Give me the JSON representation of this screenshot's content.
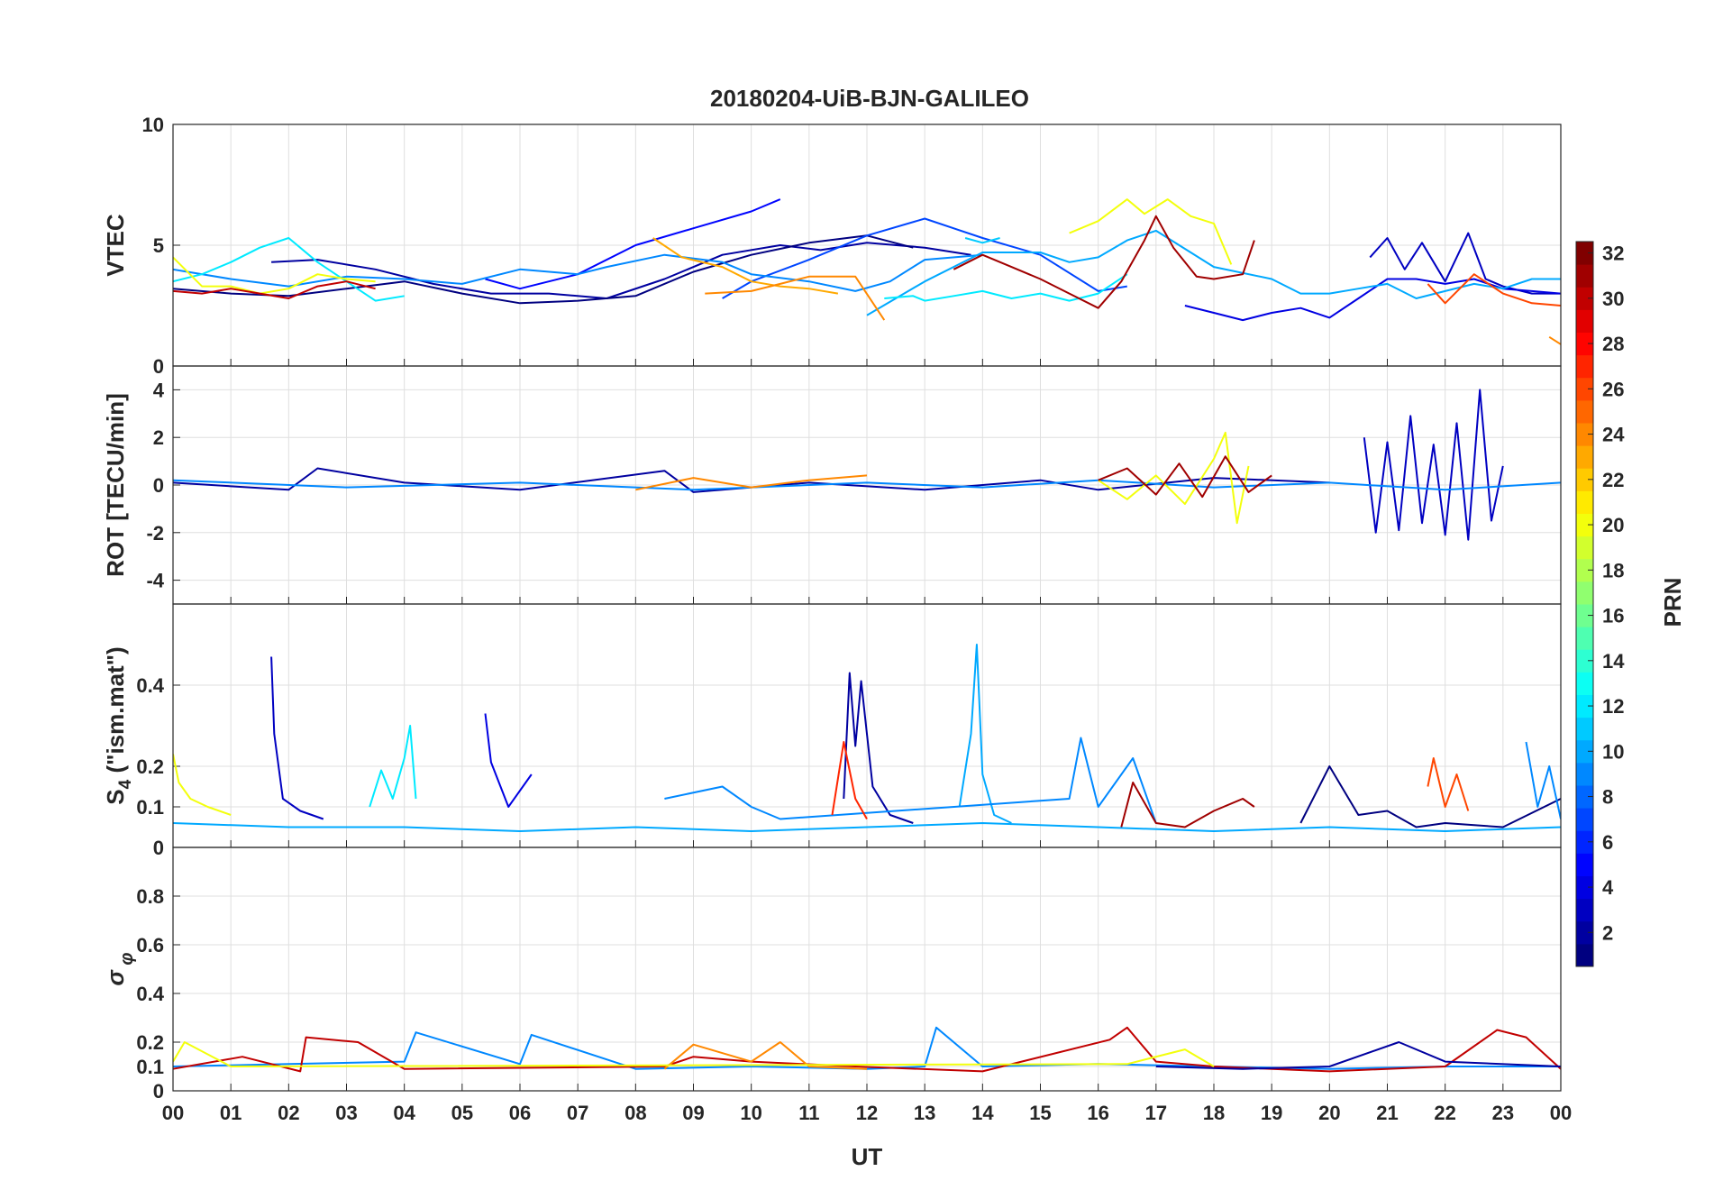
{
  "figure": {
    "title": "20180204-UiB-BJN-GALILEO",
    "xlabel": "UT",
    "x_tick_labels": [
      "00",
      "01",
      "02",
      "03",
      "04",
      "05",
      "06",
      "07",
      "08",
      "09",
      "10",
      "11",
      "12",
      "13",
      "14",
      "15",
      "16",
      "17",
      "18",
      "19",
      "20",
      "21",
      "22",
      "23",
      "00"
    ]
  },
  "colorbar": {
    "label": "PRN",
    "range": [
      1,
      32
    ],
    "tick_labels": [
      "2",
      "4",
      "6",
      "8",
      "10",
      "12",
      "14",
      "16",
      "18",
      "20",
      "22",
      "24",
      "26",
      "28",
      "30",
      "32"
    ],
    "colormap": "jet"
  },
  "chart_data": [
    {
      "type": "line",
      "panel": "vtec",
      "ylabel": "VTEC",
      "xlim": [
        0,
        24
      ],
      "ylim": [
        0,
        10
      ],
      "y_tick_labels": [
        "0",
        "5",
        "10"
      ],
      "series": [
        {
          "prn": 2,
          "x": [
            1.7,
            2.5,
            3.5,
            4.5,
            5.5,
            6.5,
            7.5,
            8.5,
            9.5,
            10.5,
            11.2,
            12,
            13,
            13.8
          ],
          "y": [
            4.3,
            4.4,
            4.0,
            3.4,
            3.0,
            3.0,
            2.8,
            3.6,
            4.6,
            5.0,
            4.8,
            5.1,
            4.9,
            4.6
          ]
        },
        {
          "prn": 1,
          "x": [
            0,
            1,
            2,
            3,
            4,
            5,
            6,
            7,
            8,
            9,
            10,
            11,
            12,
            12.8
          ],
          "y": [
            3.2,
            3.0,
            2.9,
            3.2,
            3.5,
            3.0,
            2.6,
            2.7,
            2.9,
            3.9,
            4.6,
            5.1,
            5.4,
            4.9
          ]
        },
        {
          "prn": 5,
          "x": [
            5.4,
            6,
            7,
            8,
            9,
            10,
            10.5
          ],
          "y": [
            3.6,
            3.2,
            3.8,
            5.0,
            5.7,
            6.4,
            6.9
          ]
        },
        {
          "prn": 3,
          "x": [
            20.7,
            21,
            21.3,
            21.6,
            22,
            22.4,
            22.7,
            23,
            23.5,
            24
          ],
          "y": [
            4.5,
            5.3,
            4.0,
            5.1,
            3.5,
            5.5,
            3.6,
            3.3,
            3.0,
            3.0
          ]
        },
        {
          "prn": 4,
          "x": [
            17.5,
            18,
            18.5,
            19,
            19.5,
            20,
            20.5,
            21,
            21.5,
            22,
            22.5,
            23,
            23.5,
            24
          ],
          "y": [
            2.5,
            2.2,
            1.9,
            2.2,
            2.4,
            2.0,
            2.8,
            3.6,
            3.6,
            3.4,
            3.6,
            3.2,
            3.1,
            3.0
          ]
        },
        {
          "prn": 7,
          "x": [
            9.5,
            10,
            11,
            12,
            13,
            14,
            15,
            16,
            16.5
          ],
          "y": [
            2.8,
            3.5,
            4.4,
            5.4,
            6.1,
            5.3,
            4.6,
            3.1,
            3.3
          ]
        },
        {
          "prn": 9,
          "x": [
            0,
            1,
            2,
            3,
            4,
            5,
            6,
            7,
            7.5,
            8.5,
            9.5,
            10,
            11,
            11.8,
            12.4,
            13,
            14
          ],
          "y": [
            4.0,
            3.6,
            3.3,
            3.7,
            3.6,
            3.4,
            4.0,
            3.8,
            4.1,
            4.6,
            4.3,
            3.8,
            3.5,
            3.1,
            3.5,
            4.4,
            4.6
          ]
        },
        {
          "prn": 10,
          "x": [
            12,
            13,
            14,
            15,
            15.5,
            16,
            16.5,
            17,
            18,
            19,
            19.5,
            20,
            20.5,
            21,
            21.5,
            22,
            22.5,
            23,
            23.5,
            24
          ],
          "y": [
            2.1,
            3.5,
            4.7,
            4.7,
            4.3,
            4.5,
            5.2,
            5.6,
            4.1,
            3.6,
            3.0,
            3.0,
            3.2,
            3.4,
            2.8,
            3.1,
            3.4,
            3.2,
            3.6,
            3.6
          ]
        },
        {
          "prn": 12,
          "x": [
            0,
            0.5,
            1,
            1.5,
            2,
            2.5,
            3,
            3.5,
            4
          ],
          "y": [
            3.5,
            3.8,
            4.3,
            4.9,
            5.3,
            4.3,
            3.5,
            2.7,
            2.9
          ]
        },
        {
          "prn": 12,
          "x": [
            12.3,
            12.8,
            13,
            13.5,
            14,
            14.5,
            15,
            15.5,
            16,
            16.5
          ],
          "y": [
            2.8,
            2.9,
            2.7,
            2.9,
            3.1,
            2.8,
            3.0,
            2.7,
            3.0,
            3.8
          ]
        },
        {
          "prn": 11,
          "x": [
            13.7,
            14,
            14.3
          ],
          "y": [
            5.3,
            5.1,
            5.3
          ]
        },
        {
          "prn": 20,
          "x": [
            0,
            0.5,
            1,
            1.5,
            2,
            2.5,
            3,
            3.5
          ],
          "y": [
            4.5,
            3.3,
            3.3,
            3.0,
            3.2,
            3.8,
            3.6,
            3.5
          ]
        },
        {
          "prn": 20,
          "x": [
            15.5,
            16,
            16.5,
            16.8,
            17.2,
            17.6,
            18,
            18.3
          ],
          "y": [
            5.5,
            6.0,
            6.9,
            6.3,
            6.9,
            6.2,
            5.9,
            4.2
          ]
        },
        {
          "prn": 23,
          "x": [
            8.3,
            8.8,
            9.5,
            10,
            10.5,
            11,
            11.5
          ],
          "y": [
            5.3,
            4.5,
            4.1,
            3.5,
            3.3,
            3.2,
            3.0
          ]
        },
        {
          "prn": 24,
          "x": [
            9.2,
            10,
            10.5,
            11,
            11.8,
            12.3
          ],
          "y": [
            3.0,
            3.1,
            3.4,
            3.7,
            3.7,
            1.9
          ]
        },
        {
          "prn": 26,
          "x": [
            21.7,
            22,
            22.5,
            23,
            23.5,
            24
          ],
          "y": [
            3.4,
            2.6,
            3.8,
            3.0,
            2.6,
            2.5
          ]
        },
        {
          "prn": 24,
          "x": [
            23.8,
            24
          ],
          "y": [
            1.2,
            0.9
          ]
        },
        {
          "prn": 30,
          "x": [
            0,
            0.5,
            1,
            1.5,
            2,
            2.5,
            3,
            3.5
          ],
          "y": [
            3.1,
            3.0,
            3.2,
            3.0,
            2.8,
            3.3,
            3.5,
            3.2
          ]
        },
        {
          "prn": 31,
          "x": [
            13.5,
            14,
            14.5,
            15,
            15.5,
            16,
            16.4,
            16.8,
            17,
            17.3,
            17.7,
            18,
            18.5,
            18.7
          ],
          "y": [
            4.0,
            4.6,
            4.1,
            3.6,
            3.0,
            2.4,
            3.5,
            5.2,
            6.2,
            4.9,
            3.7,
            3.6,
            3.8,
            5.2
          ]
        }
      ]
    },
    {
      "type": "line",
      "panel": "rot",
      "ylabel": "ROT [TECU/min]",
      "xlim": [
        0,
        24
      ],
      "ylim": [
        -5,
        5
      ],
      "y_tick_labels": [
        "-4",
        "-2",
        "0",
        "2",
        "4"
      ],
      "series": [
        {
          "prn": 3,
          "x": [
            20.6,
            20.8,
            21,
            21.2,
            21.4,
            21.6,
            21.8,
            22,
            22.2,
            22.4,
            22.6,
            22.8,
            23
          ],
          "y": [
            2.0,
            -2.0,
            1.8,
            -1.9,
            2.9,
            -1.6,
            1.7,
            -2.1,
            2.6,
            -2.3,
            4.0,
            -1.5,
            0.8
          ]
        },
        {
          "prn": 2,
          "x": [
            0,
            2,
            2.5,
            4,
            6,
            8.5,
            9,
            11,
            13,
            15,
            16,
            18,
            20
          ],
          "y": [
            0.1,
            -0.2,
            0.7,
            0.1,
            -0.2,
            0.6,
            -0.3,
            0.1,
            -0.2,
            0.2,
            -0.2,
            0.3,
            0.1
          ]
        },
        {
          "prn": 9,
          "x": [
            0,
            3,
            6,
            9,
            12,
            14,
            16,
            18,
            20,
            22,
            24
          ],
          "y": [
            0.2,
            -0.1,
            0.1,
            -0.2,
            0.1,
            -0.1,
            0.2,
            -0.1,
            0.1,
            -0.2,
            0.1
          ]
        },
        {
          "prn": 20,
          "x": [
            16,
            16.5,
            17,
            17.5,
            18,
            18.2,
            18.4,
            18.6
          ],
          "y": [
            0.2,
            -0.6,
            0.4,
            -0.8,
            1.1,
            2.2,
            -1.6,
            0.8
          ]
        },
        {
          "prn": 31,
          "x": [
            16,
            16.5,
            17,
            17.4,
            17.8,
            18.2,
            18.6,
            19
          ],
          "y": [
            0.2,
            0.7,
            -0.4,
            0.9,
            -0.5,
            1.2,
            -0.3,
            0.4
          ]
        },
        {
          "prn": 24,
          "x": [
            8,
            9,
            10,
            11,
            12
          ],
          "y": [
            -0.2,
            0.3,
            -0.1,
            0.2,
            0.4
          ]
        }
      ]
    },
    {
      "type": "line",
      "panel": "s4",
      "ylabel": "S4 (\"ism.mat\")",
      "xlim": [
        0,
        24
      ],
      "ylim": [
        0,
        0.6
      ],
      "y_tick_labels": [
        "0",
        "0.1",
        "0.2",
        "0.4"
      ],
      "series": [
        {
          "prn": 3,
          "x": [
            1.7,
            1.75,
            1.9,
            2.2,
            2.6
          ],
          "y": [
            0.47,
            0.28,
            0.12,
            0.09,
            0.07
          ]
        },
        {
          "prn": 4,
          "x": [
            5.4,
            5.5,
            5.8,
            6.2
          ],
          "y": [
            0.33,
            0.21,
            0.1,
            0.18
          ]
        },
        {
          "prn": 2,
          "x": [
            11.6,
            11.7,
            11.8,
            11.9,
            12.1,
            12.4,
            12.8
          ],
          "y": [
            0.12,
            0.43,
            0.25,
            0.41,
            0.15,
            0.08,
            0.06
          ]
        },
        {
          "prn": 10,
          "x": [
            13.6,
            13.8,
            13.9,
            14,
            14.2,
            14.5
          ],
          "y": [
            0.1,
            0.28,
            0.5,
            0.18,
            0.08,
            0.06
          ]
        },
        {
          "prn": 12,
          "x": [
            3.4,
            3.6,
            3.8,
            4.0,
            4.1,
            4.2
          ],
          "y": [
            0.1,
            0.19,
            0.12,
            0.22,
            0.3,
            0.12
          ]
        },
        {
          "prn": 9,
          "x": [
            8.5,
            9.5,
            10,
            10.5,
            15.5,
            15.7,
            16,
            16.6,
            17
          ],
          "y": [
            0.12,
            0.15,
            0.1,
            0.07,
            0.12,
            0.27,
            0.1,
            0.22,
            0.06
          ]
        },
        {
          "prn": 27,
          "x": [
            11.4,
            11.6,
            11.8,
            12
          ],
          "y": [
            0.08,
            0.26,
            0.12,
            0.07
          ]
        },
        {
          "prn": 26,
          "x": [
            21.7,
            21.8,
            22,
            22.2,
            22.4
          ],
          "y": [
            0.15,
            0.22,
            0.1,
            0.18,
            0.09
          ]
        },
        {
          "prn": 31,
          "x": [
            16.4,
            16.6,
            17,
            17.5,
            18,
            18.5,
            18.7
          ],
          "y": [
            0.05,
            0.16,
            0.06,
            0.05,
            0.09,
            0.12,
            0.1
          ]
        },
        {
          "prn": 1,
          "x": [
            19.5,
            20,
            20.5,
            21,
            21.5,
            22,
            23,
            24
          ],
          "y": [
            0.06,
            0.2,
            0.08,
            0.09,
            0.05,
            0.06,
            0.05,
            0.12
          ]
        },
        {
          "prn": 10,
          "x": [
            0,
            2,
            4,
            6,
            8,
            10,
            12,
            14,
            16,
            18,
            20,
            22,
            24
          ],
          "y": [
            0.06,
            0.05,
            0.05,
            0.04,
            0.05,
            0.04,
            0.05,
            0.06,
            0.05,
            0.04,
            0.05,
            0.04,
            0.05
          ]
        },
        {
          "prn": 20,
          "x": [
            0,
            0.1,
            0.3,
            0.6,
            1.0
          ],
          "y": [
            0.23,
            0.16,
            0.12,
            0.1,
            0.08
          ]
        },
        {
          "prn": 9,
          "x": [
            23.4,
            23.6,
            23.8,
            24
          ],
          "y": [
            0.26,
            0.1,
            0.2,
            0.07
          ]
        }
      ]
    },
    {
      "type": "line",
      "panel": "sigma_phi",
      "ylabel": "σφ",
      "xlim": [
        0,
        24
      ],
      "ylim": [
        0,
        1
      ],
      "y_tick_labels": [
        "0",
        "0.1",
        "0.2",
        "0.4",
        "0.6",
        "0.8"
      ],
      "series": [
        {
          "prn": 9,
          "x": [
            0,
            2,
            4,
            4.2,
            6,
            6.2,
            8,
            10,
            12,
            13,
            13.2,
            14,
            16,
            18,
            20,
            22,
            24
          ],
          "y": [
            0.1,
            0.11,
            0.12,
            0.24,
            0.11,
            0.23,
            0.09,
            0.1,
            0.09,
            0.1,
            0.26,
            0.1,
            0.11,
            0.1,
            0.09,
            0.1,
            0.1
          ]
        },
        {
          "prn": 30,
          "x": [
            0,
            1.2,
            2.2,
            2.3,
            3.2,
            4,
            8.5,
            9,
            10,
            11.8,
            14,
            16.2,
            16.5,
            17,
            18,
            20,
            22,
            22.9,
            23.4,
            24
          ],
          "y": [
            0.09,
            0.14,
            0.08,
            0.22,
            0.2,
            0.09,
            0.1,
            0.14,
            0.12,
            0.1,
            0.08,
            0.21,
            0.26,
            0.12,
            0.1,
            0.08,
            0.1,
            0.25,
            0.22,
            0.09
          ]
        },
        {
          "prn": 24,
          "x": [
            8.5,
            9,
            10,
            10.5,
            11,
            12
          ],
          "y": [
            0.09,
            0.19,
            0.12,
            0.2,
            0.1,
            0.09
          ]
        },
        {
          "prn": 2,
          "x": [
            17,
            18.5,
            20,
            21.2,
            22,
            24
          ],
          "y": [
            0.1,
            0.09,
            0.1,
            0.2,
            0.12,
            0.1
          ]
        },
        {
          "prn": 20,
          "x": [
            0,
            0.2,
            1,
            16.5,
            17.5,
            18
          ],
          "y": [
            0.12,
            0.2,
            0.1,
            0.11,
            0.17,
            0.1
          ]
        }
      ]
    }
  ]
}
